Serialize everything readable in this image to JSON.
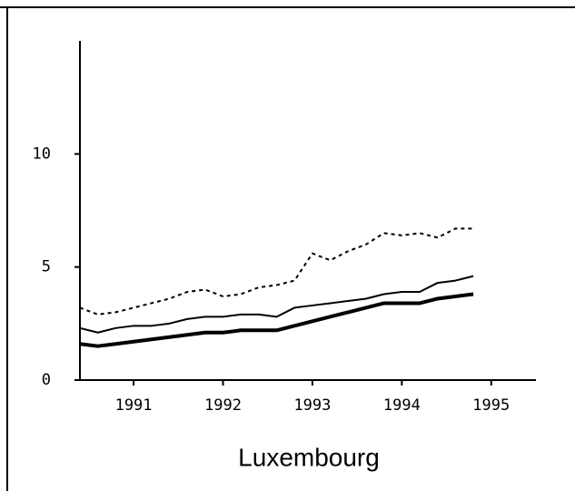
{
  "chart_data": {
    "type": "line",
    "title": "Luxembourg",
    "x": [
      1990.4,
      1990.6,
      1990.8,
      1991.0,
      1991.2,
      1991.4,
      1991.6,
      1991.8,
      1992.0,
      1992.2,
      1992.4,
      1992.6,
      1992.8,
      1993.0,
      1993.2,
      1993.4,
      1993.6,
      1993.8,
      1994.0,
      1994.2,
      1994.4,
      1994.6,
      1994.8
    ],
    "series": [
      {
        "color": "#000000",
        "style": "dotted",
        "width": 2,
        "values": [
          3.2,
          2.9,
          3.0,
          3.2,
          3.4,
          3.6,
          3.9,
          4.0,
          3.7,
          3.8,
          4.1,
          4.2,
          4.4,
          5.6,
          5.3,
          5.7,
          6.0,
          6.5,
          6.4,
          6.5,
          6.3,
          6.7,
          6.7
        ]
      },
      {
        "color": "#000000",
        "style": "solid",
        "width": 2,
        "values": [
          2.3,
          2.1,
          2.3,
          2.4,
          2.4,
          2.5,
          2.7,
          2.8,
          2.8,
          2.9,
          2.9,
          2.8,
          3.2,
          3.3,
          3.4,
          3.5,
          3.6,
          3.8,
          3.9,
          3.9,
          4.3,
          4.4,
          4.6
        ]
      },
      {
        "color": "#000000",
        "style": "solid",
        "width": 4,
        "values": [
          1.6,
          1.5,
          1.6,
          1.7,
          1.8,
          1.9,
          2.0,
          2.1,
          2.1,
          2.2,
          2.2,
          2.2,
          2.4,
          2.6,
          2.8,
          3.0,
          3.2,
          3.4,
          3.4,
          3.4,
          3.6,
          3.7,
          3.8
        ]
      }
    ],
    "xlim": [
      1990.4,
      1995.5
    ],
    "xticks": [
      1991,
      1992,
      1993,
      1994,
      1995
    ],
    "ylim": [
      0,
      15
    ],
    "yticks": [
      0,
      5,
      10
    ]
  }
}
